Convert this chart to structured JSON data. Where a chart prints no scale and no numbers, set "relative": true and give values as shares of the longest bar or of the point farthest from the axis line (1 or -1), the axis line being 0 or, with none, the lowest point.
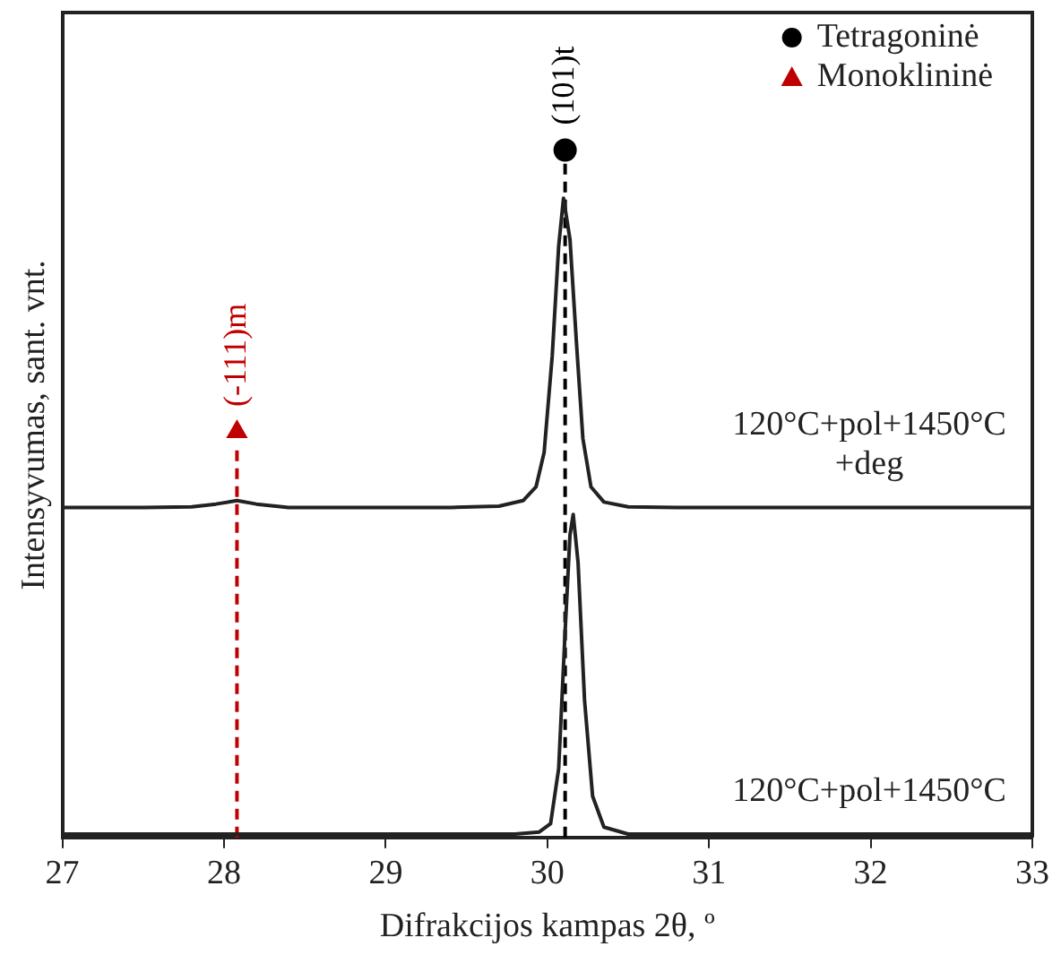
{
  "chart_data": {
    "type": "line",
    "relative": true,
    "xlabel": "Difrakcijos kampas 2θ, º",
    "ylabel": "Intensyvumas, sant. vnt.",
    "xlim": [
      27,
      33
    ],
    "xticks": [
      27,
      28,
      29,
      30,
      31,
      32,
      33
    ],
    "tick_labels": "x",
    "grid": false,
    "legend": "top right",
    "line_style": "solid",
    "marker": "none",
    "series": [
      {
        "name": "120°C+pol+1450°C +deg",
        "color": "#222222",
        "x": [
          27,
          27.5,
          27.8,
          27.95,
          28.08,
          28.2,
          28.4,
          28.8,
          29.4,
          29.7,
          29.85,
          29.93,
          29.98,
          30.03,
          30.07,
          30.1,
          30.14,
          30.18,
          30.22,
          30.27,
          30.35,
          30.5,
          30.8,
          31.5,
          33
        ],
        "values": [
          0.48,
          0.48,
          0.481,
          0.485,
          0.49,
          0.485,
          0.48,
          0.48,
          0.48,
          0.482,
          0.49,
          0.51,
          0.56,
          0.7,
          0.86,
          0.93,
          0.87,
          0.72,
          0.58,
          0.51,
          0.488,
          0.481,
          0.48,
          0.48,
          0.48
        ]
      },
      {
        "name": "120°C+pol+1450°C",
        "color": "#222222",
        "x": [
          27,
          28,
          29,
          29.8,
          29.95,
          30.02,
          30.07,
          30.11,
          30.14,
          30.16,
          30.19,
          30.23,
          30.28,
          30.35,
          30.5,
          31,
          33
        ],
        "values": [
          0.005,
          0.005,
          0.005,
          0.005,
          0.008,
          0.02,
          0.1,
          0.3,
          0.44,
          0.47,
          0.4,
          0.2,
          0.06,
          0.015,
          0.005,
          0.005,
          0.005
        ]
      },
      {
        "name": "Tetragoninė",
        "type": "scatter",
        "marker": "circle",
        "color": "#000000",
        "x": [
          30.11
        ],
        "values": [
          1
        ]
      },
      {
        "name": "Monoklininė",
        "type": "scatter",
        "marker": "triangle",
        "color": "#c00000",
        "x": [
          28.08
        ],
        "values": [
          0.59
        ]
      }
    ],
    "ref_lines": [
      {
        "axis": "x",
        "value": 30.11,
        "color": "#000000",
        "line_style": "dashed",
        "label": "(101)t"
      },
      {
        "axis": "x",
        "value": 28.08,
        "color": "#c00000",
        "line_style": "dashed",
        "label": "(-111)m"
      }
    ]
  }
}
